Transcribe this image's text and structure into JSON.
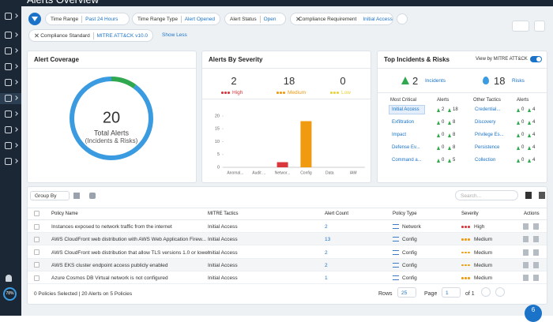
{
  "header": {
    "title": "Alerts Overview"
  },
  "filters": [
    {
      "label": "Time Range",
      "value": "Past 24 Hours"
    },
    {
      "label": "Time Range Type",
      "value": "Alert Opened"
    },
    {
      "label": "Alert Status",
      "value": "Open"
    },
    {
      "label": "Compliance Requirement",
      "value": "Initial Access"
    },
    {
      "label": "Compliance Standard",
      "value": "MITRE ATT&CK v10.0"
    }
  ],
  "show_less": "Show Less",
  "coverage": {
    "title": "Alert Coverage",
    "total": 20,
    "total_label": "Total Alerts",
    "subtitle": "(Incidents & Risks)"
  },
  "severity": {
    "title": "Alerts By Severity",
    "counts": [
      {
        "name": "High",
        "value": 2,
        "color": "#d9373b"
      },
      {
        "name": "Medium",
        "value": 18,
        "color": "#f09a0f"
      },
      {
        "name": "Low",
        "value": 0,
        "color": "#e8d33a"
      }
    ],
    "chart": {
      "type": "bar",
      "categories": [
        "Anomal...",
        "Audit ...",
        "Networ...",
        "Config",
        "Data",
        "IAM"
      ],
      "values": [
        0,
        0,
        2,
        18,
        0,
        0
      ],
      "colors": [
        "#f09a0f",
        "#f09a0f",
        "#d9373b",
        "#f09a0f",
        "#f09a0f",
        "#f09a0f"
      ],
      "ylim": [
        0,
        20
      ],
      "yticks": [
        0,
        5,
        10,
        15,
        20
      ]
    }
  },
  "top": {
    "title": "Top Incidents & Risks",
    "toggle_label": "View by MITRE ATT&CK",
    "incidents": {
      "value": 2,
      "label": "Incidents",
      "color": "#2fa84f"
    },
    "risks": {
      "value": 18,
      "label": "Risks",
      "color": "#3a9be0"
    },
    "columns": [
      "Most Critical",
      "Alerts",
      "Other Tactics",
      "Alerts"
    ],
    "rows": [
      [
        "Initial Access",
        2,
        18,
        "Credential...",
        0,
        4
      ],
      [
        "Exfiltration",
        0,
        8,
        "Discovery",
        0,
        4
      ],
      [
        "Impact",
        0,
        8,
        "Privilege Es...",
        0,
        4
      ],
      [
        "Defense Ev...",
        0,
        8,
        "Persistence",
        0,
        4
      ],
      [
        "Command a...",
        0,
        5,
        "Collection",
        0,
        4
      ]
    ]
  },
  "toolbar": {
    "group_by": "Group By",
    "search_placeholder": "Search..."
  },
  "table": {
    "columns": [
      "Policy Name",
      "MITRE Tactics",
      "Alert Count",
      "Policy Type",
      "Severity",
      "Actions"
    ],
    "rows": [
      [
        "Instances exposed to network traffic from the internet",
        "Initial Access",
        2,
        "Network",
        "High"
      ],
      [
        "AWS CloudFront web distribution with AWS Web Application Firew...",
        "Initial Access",
        13,
        "Config",
        "Medium"
      ],
      [
        "AWS CloudFront web distribution that allow TLS versions 1.0 or lower",
        "Initial Access",
        2,
        "Config",
        "Medium"
      ],
      [
        "AWS EKS cluster endpoint access publicly enabled",
        "Initial Access",
        2,
        "Config",
        "Medium"
      ],
      [
        "Azure Cosmos DB Virtual network is not configured",
        "Initial Access",
        1,
        "Config",
        "Medium"
      ]
    ]
  },
  "footer": {
    "selection": "0 Policies Selected | 20 Alerts on 5 Policies",
    "rows_label": "Rows",
    "rows_value": 25,
    "page_label": "Page",
    "page_value": 1,
    "page_total": "of 1"
  },
  "sidebar": {
    "badge": "78%"
  },
  "help_badge": 6
}
